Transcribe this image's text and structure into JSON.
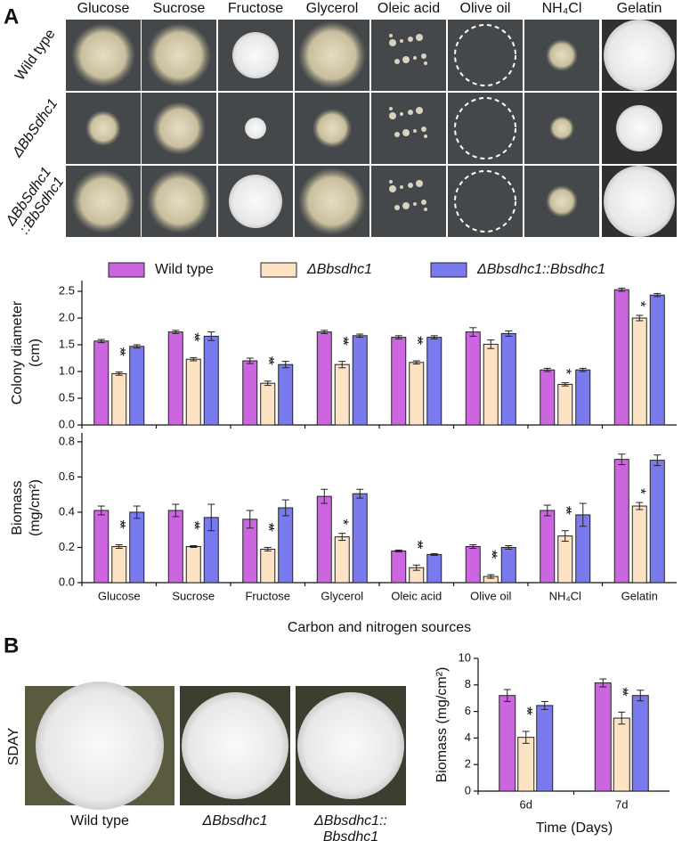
{
  "panels": [
    "A",
    "B"
  ],
  "photo_grid": {
    "columns": [
      "Glucose",
      "Sucrose",
      "Fructose",
      "Glycerol",
      "Oleic acid",
      "Olive oil",
      "NH₄Cl",
      "Gelatin"
    ],
    "rows": [
      [
        "Wild type"
      ],
      [
        "ΔBbSdhc1"
      ],
      [
        "ΔBbSdhc1",
        "::BbSdhc1"
      ]
    ]
  },
  "plates": {
    "row_label": "SDAY",
    "columns": [
      [
        "Wild type"
      ],
      [
        "ΔBbsdhc1"
      ],
      [
        "ΔBbsdhc1::",
        "Bbsdhc1"
      ]
    ]
  },
  "chart_data": [
    {
      "type": "bar",
      "ylabel": [
        "Colony diameter",
        "(cm)"
      ],
      "categories": [
        null,
        null,
        null,
        null,
        null,
        null,
        null,
        null
      ],
      "ylim": [
        0,
        2.7
      ],
      "yticks": [
        {
          "value": 0,
          "label": "0.0"
        },
        {
          "value": 0.5,
          "label": "0.5"
        },
        {
          "value": 1,
          "label": "1.0"
        },
        {
          "value": 1.5,
          "label": "1.5"
        },
        {
          "value": 2,
          "label": "2.0"
        },
        {
          "value": 2.5,
          "label": "2.5"
        }
      ],
      "series": [
        {
          "name": "Wild type",
          "color": "#cc66e0",
          "values": [
            1.57,
            1.74,
            1.2,
            1.74,
            1.64,
            1.74,
            1.03,
            2.53
          ],
          "errors": [
            0.03,
            0.03,
            0.05,
            0.03,
            0.03,
            0.08,
            0.03,
            0.03
          ]
        },
        {
          "name": "ΔBbsdhc1",
          "color": "#fde3c4",
          "values": [
            0.96,
            1.23,
            0.78,
            1.13,
            1.17,
            1.51,
            0.76,
            2.0
          ],
          "errors": [
            0.03,
            0.03,
            0.04,
            0.06,
            0.03,
            0.08,
            0.03,
            0.05
          ],
          "annotations": [
            "**",
            "**",
            "**",
            "**",
            "**",
            null,
            "*",
            "*"
          ]
        },
        {
          "name": "ΔBbsdhc1::Bbsdhc1",
          "color": "#7a7aef",
          "values": [
            1.47,
            1.66,
            1.13,
            1.67,
            1.64,
            1.71,
            1.03,
            2.43
          ],
          "errors": [
            0.03,
            0.08,
            0.06,
            0.03,
            0.03,
            0.05,
            0.03,
            0.03
          ]
        }
      ]
    },
    {
      "type": "bar",
      "ylabel": [
        "Biomass",
        "(mg/cm²)"
      ],
      "xlabel": "Carbon and nitrogen sources",
      "categories": [
        "Glucose",
        "Sucrose",
        "Fructose",
        "Glycerol",
        "Oleic acid",
        "Olive oil",
        "NH₄Cl",
        "Gelatin"
      ],
      "ylim": [
        0,
        0.85
      ],
      "yticks": [
        {
          "value": 0,
          "label": "0.0"
        },
        0.2,
        0.4,
        0.6,
        0.8
      ],
      "series": [
        {
          "color": "#cc66e0",
          "values": [
            0.41,
            0.41,
            0.36,
            0.49,
            0.18,
            0.205,
            0.41,
            0.7
          ],
          "errors": [
            0.025,
            0.035,
            0.05,
            0.04,
            0.005,
            0.01,
            0.03,
            0.03
          ]
        },
        {
          "color": "#fde3c4",
          "values": [
            0.205,
            0.205,
            0.19,
            0.26,
            0.085,
            0.035,
            0.265,
            0.435
          ],
          "errors": [
            0.01,
            0.005,
            0.01,
            0.02,
            0.015,
            0.01,
            0.03,
            0.02
          ],
          "annotations": [
            "**",
            "**",
            "**",
            "*",
            "**",
            "**",
            "**",
            "*"
          ]
        },
        {
          "color": "#7a7aef",
          "values": [
            0.4,
            0.37,
            0.425,
            0.505,
            0.16,
            0.2,
            0.385,
            0.695
          ],
          "errors": [
            0.035,
            0.075,
            0.045,
            0.025,
            0.005,
            0.01,
            0.065,
            0.03
          ]
        }
      ]
    },
    {
      "type": "bar",
      "ylabel": [
        "Biomass  (mg/cm²)"
      ],
      "xlabel": "Time (Days)",
      "categories": [
        "6d",
        "7d"
      ],
      "ylim": [
        0,
        10
      ],
      "yticks": [
        0,
        2,
        4,
        6,
        8,
        10
      ],
      "series": [
        {
          "color": "#cc66e0",
          "values": [
            7.2,
            8.15
          ],
          "errors": [
            0.45,
            0.3
          ]
        },
        {
          "color": "#fde3c4",
          "values": [
            4.05,
            5.5
          ],
          "errors": [
            0.45,
            0.45
          ],
          "annotations": [
            "**",
            "**"
          ]
        },
        {
          "color": "#7a7aef",
          "values": [
            6.45,
            7.2
          ],
          "errors": [
            0.3,
            0.4
          ]
        }
      ]
    }
  ]
}
